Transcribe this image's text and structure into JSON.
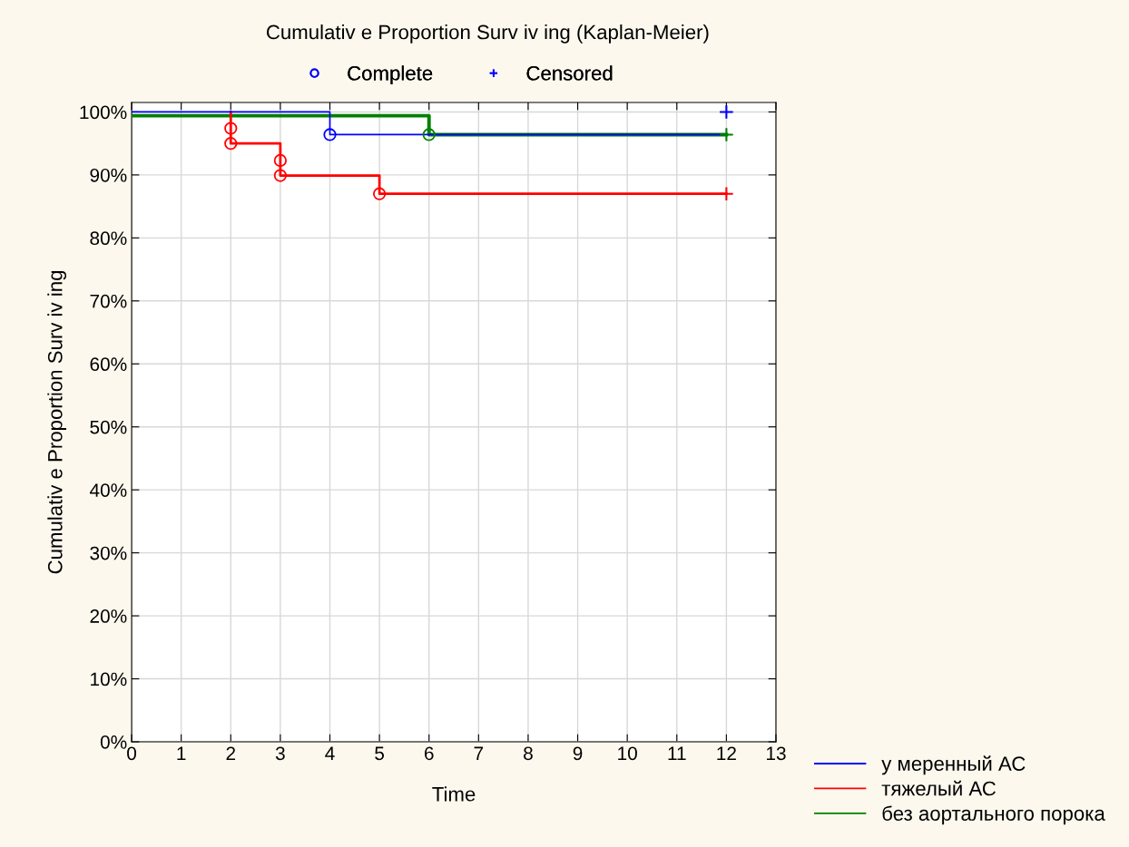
{
  "chart_data": {
    "type": "step",
    "title": "Cumulativ e Proportion Surv iv ing (Kaplan-Meier)",
    "xlabel": "Time",
    "ylabel": "Cumulativ e Proportion Surv iv ing",
    "xlim": [
      0,
      13
    ],
    "xticks": [
      0,
      1,
      2,
      3,
      4,
      5,
      6,
      7,
      8,
      9,
      10,
      11,
      12,
      13
    ],
    "ylim": [
      0,
      101.5
    ],
    "yticks": [
      {
        "value": 0,
        "label": "0%"
      },
      {
        "value": 10,
        "label": "10%"
      },
      {
        "value": 20,
        "label": "20%"
      },
      {
        "value": 30,
        "label": "30%"
      },
      {
        "value": 40,
        "label": "40%"
      },
      {
        "value": 50,
        "label": "50%"
      },
      {
        "value": 60,
        "label": "60%"
      },
      {
        "value": 70,
        "label": "70%"
      },
      {
        "value": 80,
        "label": "80%"
      },
      {
        "value": 90,
        "label": "90%"
      },
      {
        "value": 100,
        "label": "100%"
      }
    ],
    "grid": true,
    "legend": "bottom right",
    "series": [
      {
        "name": "у меренный АС",
        "color": "#0000ff",
        "x": [
          0,
          4,
          12
        ],
        "values": [
          100,
          96.4,
          96.4
        ]
      },
      {
        "name": "тяжелый АС",
        "color": "#ff0000",
        "x": [
          2,
          2,
          3,
          5,
          12
        ],
        "values": [
          100,
          95,
          89.9,
          87,
          87
        ]
      },
      {
        "name": "без аортального порока",
        "color": "#008000",
        "x": [
          0,
          6,
          12
        ],
        "values": [
          99.4,
          96.4,
          96.4
        ]
      },
      {
        "type": "scatter",
        "name": "Complete",
        "marker": "circle",
        "color": "#0000ff",
        "x": [
          4
        ],
        "values": [
          96.4
        ]
      },
      {
        "type": "scatter",
        "name": "Censored",
        "marker": "cross",
        "color": "#0000ff",
        "x": [
          12
        ],
        "values": [
          100
        ]
      },
      {
        "type": "scatter",
        "marker": "circle",
        "color": "#ff0000",
        "x": [
          2,
          2,
          3,
          3,
          5
        ],
        "values": [
          97.4,
          95,
          92.3,
          89.9,
          87
        ]
      },
      {
        "type": "scatter",
        "marker": "cross",
        "color": "#ff0000",
        "x": [
          12
        ],
        "values": [
          87
        ]
      },
      {
        "type": "scatter",
        "marker": "circle",
        "color": "#008000",
        "x": [
          6
        ],
        "values": [
          96.4
        ]
      },
      {
        "type": "scatter",
        "marker": "cross",
        "color": "#008000",
        "x": [
          12
        ],
        "values": [
          96.4
        ]
      }
    ]
  }
}
